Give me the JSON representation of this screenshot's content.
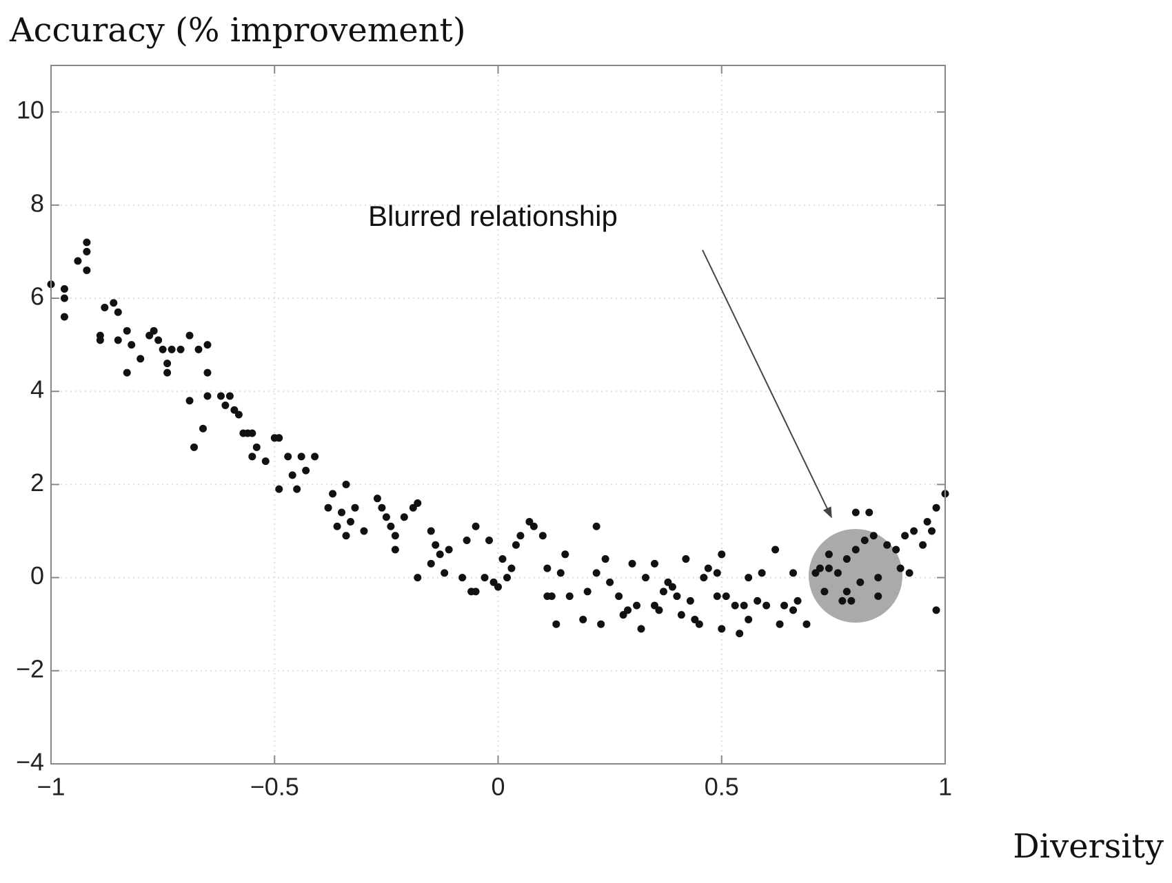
{
  "chart_data": {
    "type": "scatter",
    "y_label": "Accuracy (% improvement)",
    "x_label": "Diversity",
    "annotation": "Blurred relationship",
    "color": "#111111",
    "grid": true,
    "xlim": [
      -1,
      1
    ],
    "ylim": [
      -4,
      11
    ],
    "xticks": [
      {
        "value": -1,
        "label": "−1"
      },
      {
        "value": -0.5,
        "label": "−0.5"
      },
      0,
      0.5,
      1
    ],
    "yticks": [
      {
        "value": -4,
        "label": "−4"
      },
      {
        "value": -2,
        "label": "−2"
      },
      0,
      2,
      4,
      6,
      8,
      10
    ],
    "x": [
      -1.0,
      -0.97,
      -0.97,
      -0.97,
      -0.94,
      -0.92,
      -0.92,
      -0.92,
      -0.89,
      -0.89,
      -0.88,
      -0.86,
      -0.85,
      -0.85,
      -0.83,
      -0.83,
      -0.82,
      -0.8,
      -0.78,
      -0.77,
      -0.76,
      -0.75,
      -0.74,
      -0.74,
      -0.73,
      -0.71,
      -0.69,
      -0.69,
      -0.68,
      -0.67,
      -0.65,
      -0.65,
      -0.65,
      -0.66,
      -0.62,
      -0.61,
      -0.6,
      -0.59,
      -0.58,
      -0.57,
      -0.56,
      -0.55,
      -0.55,
      -0.54,
      -0.52,
      -0.5,
      -0.49,
      -0.49,
      -0.47,
      -0.46,
      -0.45,
      -0.44,
      -0.43,
      -0.41,
      -0.38,
      -0.37,
      -0.36,
      -0.35,
      -0.34,
      -0.34,
      -0.33,
      -0.32,
      -0.3,
      -0.27,
      -0.26,
      -0.25,
      -0.24,
      -0.23,
      -0.23,
      -0.21,
      -0.19,
      -0.18,
      -0.18,
      -0.15,
      -0.15,
      -0.14,
      -0.13,
      -0.12,
      -0.11,
      -0.08,
      -0.07,
      -0.06,
      -0.05,
      -0.05,
      -0.03,
      -0.02,
      -0.01,
      0.0,
      0.01,
      0.02,
      0.03,
      0.04,
      0.05,
      0.07,
      0.08,
      0.1,
      0.11,
      0.11,
      0.12,
      0.13,
      0.14,
      0.15,
      0.16,
      0.19,
      0.2,
      0.22,
      0.22,
      0.23,
      0.24,
      0.25,
      0.27,
      0.28,
      0.29,
      0.3,
      0.31,
      0.32,
      0.33,
      0.35,
      0.35,
      0.36,
      0.37,
      0.38,
      0.39,
      0.4,
      0.41,
      0.42,
      0.43,
      0.44,
      0.45,
      0.46,
      0.47,
      0.49,
      0.49,
      0.5,
      0.5,
      0.51,
      0.53,
      0.54,
      0.55,
      0.56,
      0.56,
      0.58,
      0.59,
      0.6,
      0.62,
      0.63,
      0.64,
      0.66,
      0.66,
      0.67,
      0.69,
      0.71,
      0.72,
      0.73,
      0.74,
      0.74,
      0.76,
      0.77,
      0.78,
      0.78,
      0.79,
      0.8,
      0.8,
      0.81,
      0.82,
      0.83,
      0.84,
      0.85,
      0.85,
      0.87,
      0.89,
      0.9,
      0.91,
      0.92,
      0.93,
      0.95,
      0.96,
      0.97,
      0.98,
      0.98,
      1.0
    ],
    "values": [
      6.3,
      6.2,
      6.0,
      5.6,
      6.8,
      7.2,
      7.0,
      6.6,
      5.2,
      5.1,
      5.8,
      5.9,
      5.7,
      5.1,
      5.3,
      4.4,
      5.0,
      4.7,
      5.2,
      5.3,
      5.1,
      4.9,
      4.6,
      4.4,
      4.9,
      4.9,
      5.2,
      3.8,
      2.8,
      4.9,
      5.0,
      4.4,
      3.9,
      3.2,
      3.9,
      3.7,
      3.9,
      3.6,
      3.5,
      3.1,
      3.1,
      3.1,
      2.6,
      2.8,
      2.5,
      3.0,
      3.0,
      1.9,
      2.6,
      2.2,
      1.9,
      2.6,
      2.3,
      2.6,
      1.5,
      1.8,
      1.1,
      1.4,
      2.0,
      0.9,
      1.2,
      1.5,
      1.0,
      1.7,
      1.5,
      1.3,
      1.1,
      0.9,
      0.6,
      1.3,
      1.5,
      1.6,
      0.0,
      0.3,
      1.0,
      0.7,
      0.5,
      0.1,
      0.6,
      0.0,
      0.8,
      -0.3,
      -0.3,
      1.1,
      0.0,
      0.8,
      -0.1,
      -0.2,
      0.4,
      0.0,
      0.2,
      0.7,
      0.9,
      1.2,
      1.1,
      0.9,
      0.2,
      -0.4,
      -0.4,
      -1.0,
      0.1,
      0.5,
      -0.4,
      -0.9,
      -0.3,
      0.1,
      1.1,
      -1.0,
      0.4,
      -0.1,
      -0.4,
      -0.8,
      -0.7,
      0.3,
      -0.6,
      -1.1,
      0.0,
      0.3,
      -0.6,
      -0.7,
      -0.3,
      -0.1,
      -0.2,
      -0.4,
      -0.8,
      0.4,
      -0.5,
      -0.9,
      -1.0,
      0.0,
      0.2,
      0.1,
      -0.4,
      -1.1,
      0.5,
      -0.4,
      -0.6,
      -1.2,
      -0.6,
      -0.9,
      0.0,
      -0.5,
      0.1,
      -0.6,
      0.6,
      -1.0,
      -0.6,
      -0.7,
      0.1,
      -0.5,
      -1.0,
      0.1,
      0.2,
      -0.3,
      0.2,
      0.5,
      0.1,
      -0.5,
      0.4,
      -0.3,
      -0.5,
      0.6,
      1.4,
      -0.1,
      0.8,
      1.4,
      0.9,
      0.0,
      -0.4,
      0.7,
      0.6,
      0.2,
      0.9,
      0.1,
      1.0,
      0.7,
      1.2,
      1.0,
      1.5,
      -0.7,
      1.8
    ]
  }
}
